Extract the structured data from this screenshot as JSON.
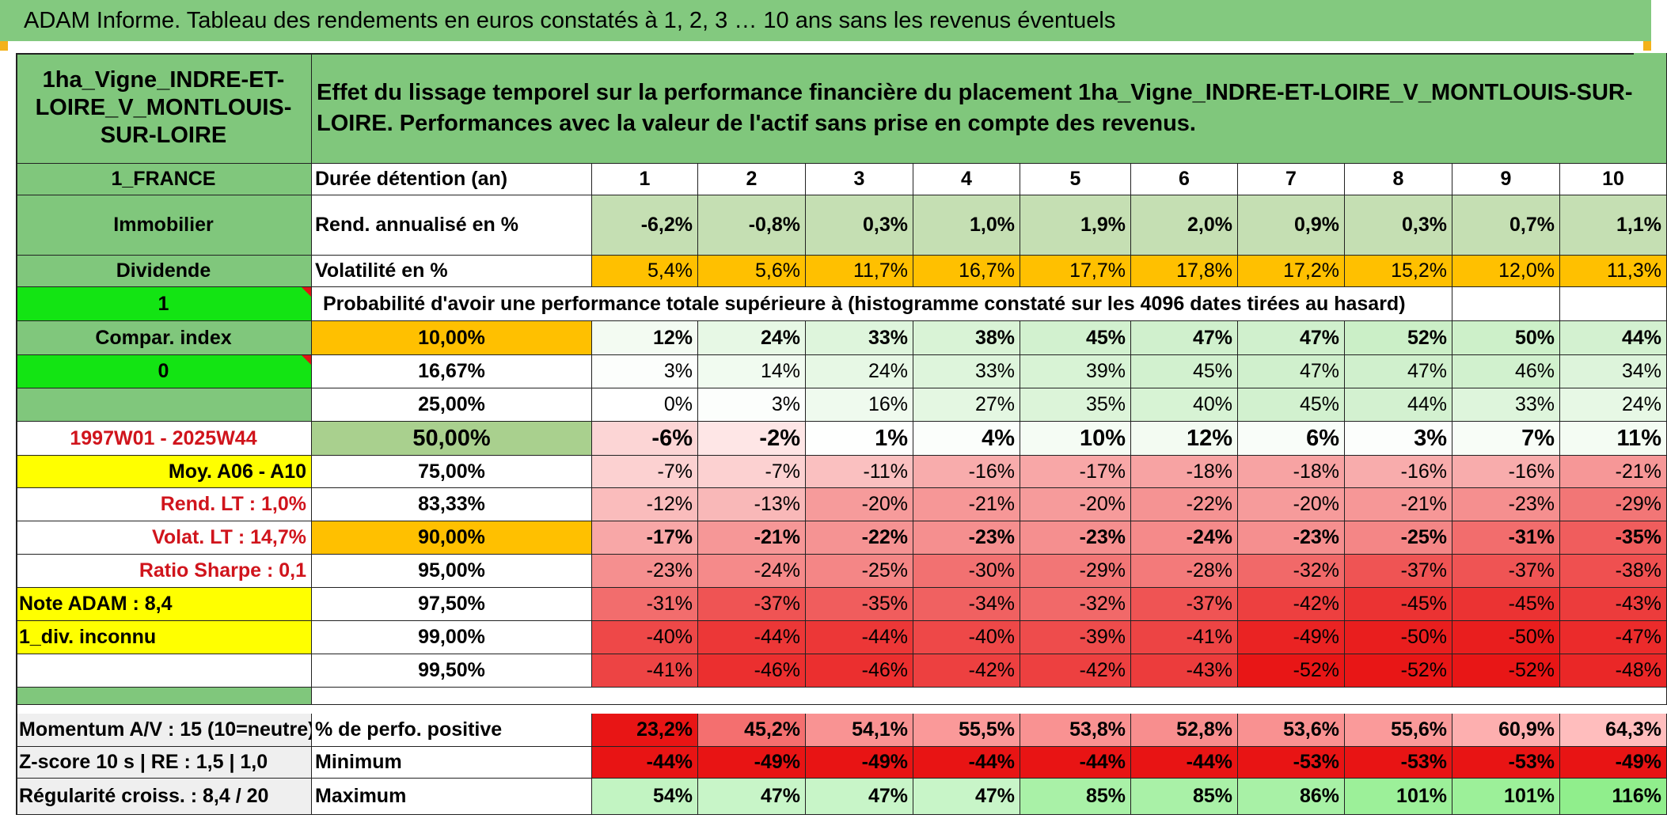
{
  "header": {
    "title": "ADAM Informe. Tableau des rendements en euros constatés à 1, 2, 3 … 10 ans sans les revenus éventuels"
  },
  "left": {
    "asset_name": "1ha_Vigne_INDRE-ET-LOIRE_V_MONTLOUIS-SUR-LOIRE",
    "country": "1_FRANCE",
    "category": "Immobilier",
    "dividend_label": "Dividende",
    "dividend_value": "1",
    "compar_label": "Compar. index",
    "compar_value": "0",
    "period": "1997W01 - 2025W44",
    "moy": "Moy. A06 - A10",
    "rend_lt": "Rend. LT :   1,0%",
    "volat_lt": "Volat. LT :   14,7%",
    "sharpe": "Ratio Sharpe :    0,1",
    "note": "Note ADAM : 8,4",
    "div": "1_div. inconnu",
    "momentum": "Momentum A/V : 15 (10=neutre)",
    "zscore": "Z-score 10 s | RE : 1,5 | 1,0",
    "regularite": "Régularité croiss. : 8,4 / 20"
  },
  "main": {
    "description": "Effet du lissage temporel sur la performance financière du placement 1ha_Vigne_INDRE-ET-LOIRE_V_MONTLOUIS-SUR-LOIRE. Performances avec la valeur de l'actif sans prise en compte des revenus.",
    "duration_label": "Durée détention (an)",
    "years": [
      "1",
      "2",
      "3",
      "4",
      "5",
      "6",
      "7",
      "8",
      "9",
      "10"
    ],
    "rend_label": "Rend. annualisé en %",
    "rend": [
      "-6,2%",
      "-0,8%",
      "0,3%",
      "1,0%",
      "1,9%",
      "2,0%",
      "0,9%",
      "0,3%",
      "0,7%",
      "1,1%"
    ],
    "volat_label": "Volatilité en %",
    "volat": [
      "5,4%",
      "5,6%",
      "11,7%",
      "16,7%",
      "17,7%",
      "17,8%",
      "17,2%",
      "15,2%",
      "12,0%",
      "11,3%"
    ],
    "prob_label": "Probabilité d'avoir une performance totale supérieure à (histogramme constaté sur les 4096 dates tirées au hasard)",
    "quantiles": [
      {
        "p": "10,00%",
        "v": [
          "12%",
          "24%",
          "33%",
          "38%",
          "45%",
          "47%",
          "47%",
          "52%",
          "50%",
          "44%"
        ]
      },
      {
        "p": "16,67%",
        "v": [
          "3%",
          "14%",
          "24%",
          "33%",
          "39%",
          "45%",
          "47%",
          "47%",
          "46%",
          "34%"
        ]
      },
      {
        "p": "25,00%",
        "v": [
          "0%",
          "3%",
          "16%",
          "27%",
          "35%",
          "40%",
          "45%",
          "44%",
          "33%",
          "24%"
        ]
      },
      {
        "p": "50,00%",
        "v": [
          "-6%",
          "-2%",
          "1%",
          "4%",
          "10%",
          "12%",
          "6%",
          "3%",
          "7%",
          "11%"
        ]
      },
      {
        "p": "75,00%",
        "v": [
          "-7%",
          "-7%",
          "-11%",
          "-16%",
          "-17%",
          "-18%",
          "-18%",
          "-16%",
          "-16%",
          "-21%"
        ]
      },
      {
        "p": "83,33%",
        "v": [
          "-12%",
          "-13%",
          "-20%",
          "-21%",
          "-20%",
          "-22%",
          "-20%",
          "-21%",
          "-23%",
          "-29%"
        ]
      },
      {
        "p": "90,00%",
        "v": [
          "-17%",
          "-21%",
          "-22%",
          "-23%",
          "-23%",
          "-24%",
          "-23%",
          "-25%",
          "-31%",
          "-35%"
        ]
      },
      {
        "p": "95,00%",
        "v": [
          "-23%",
          "-24%",
          "-25%",
          "-30%",
          "-29%",
          "-28%",
          "-32%",
          "-37%",
          "-37%",
          "-38%"
        ]
      },
      {
        "p": "97,50%",
        "v": [
          "-31%",
          "-37%",
          "-35%",
          "-34%",
          "-32%",
          "-37%",
          "-42%",
          "-45%",
          "-45%",
          "-43%"
        ]
      },
      {
        "p": "99,00%",
        "v": [
          "-40%",
          "-44%",
          "-44%",
          "-40%",
          "-39%",
          "-41%",
          "-49%",
          "-50%",
          "-50%",
          "-47%"
        ]
      },
      {
        "p": "99,50%",
        "v": [
          "-41%",
          "-46%",
          "-46%",
          "-42%",
          "-42%",
          "-43%",
          "-52%",
          "-52%",
          "-52%",
          "-48%"
        ]
      }
    ],
    "positive_label": "% de perfo. positive",
    "positive": [
      "23,2%",
      "45,2%",
      "54,1%",
      "55,5%",
      "53,8%",
      "52,8%",
      "53,6%",
      "55,6%",
      "60,9%",
      "64,3%"
    ],
    "min_label": "Minimum",
    "min": [
      "-44%",
      "-49%",
      "-49%",
      "-44%",
      "-44%",
      "-44%",
      "-53%",
      "-53%",
      "-53%",
      "-49%"
    ],
    "max_label": "Maximum",
    "max": [
      "54%",
      "47%",
      "47%",
      "47%",
      "85%",
      "85%",
      "86%",
      "101%",
      "101%",
      "116%"
    ]
  }
}
